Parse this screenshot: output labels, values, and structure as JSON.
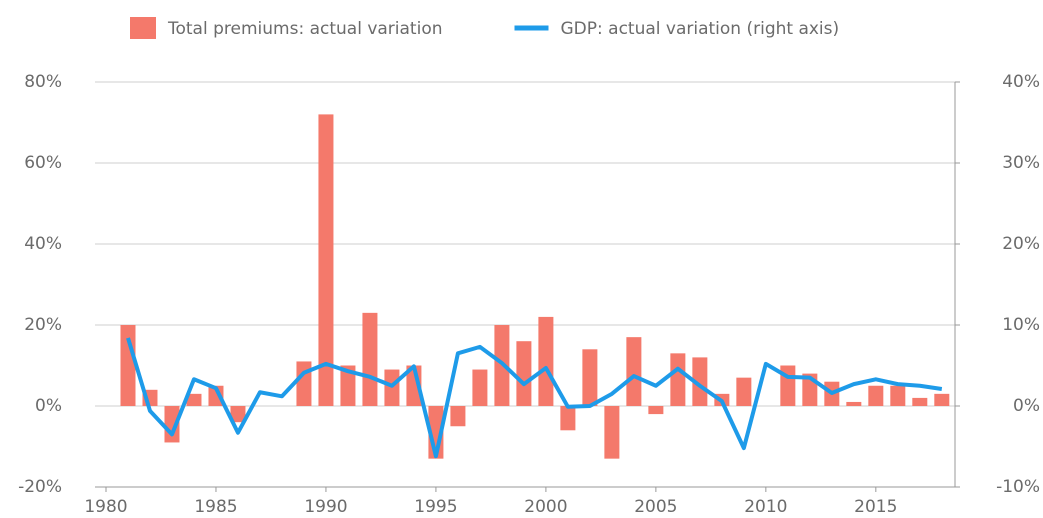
{
  "chart_data": {
    "type": "combo",
    "legend": "top",
    "grid": true,
    "x": [
      1981,
      1982,
      1983,
      1984,
      1985,
      1986,
      1987,
      1988,
      1989,
      1990,
      1991,
      1992,
      1993,
      1994,
      1995,
      1996,
      1997,
      1998,
      1999,
      2000,
      2001,
      2002,
      2003,
      2004,
      2005,
      2006,
      2007,
      2008,
      2009,
      2010,
      2011,
      2012,
      2013,
      2014,
      2015,
      2016,
      2017,
      2018
    ],
    "xlim": [
      1979.5,
      2018.6
    ],
    "xticks": [
      1980,
      1985,
      1990,
      1995,
      2000,
      2005,
      2010,
      2015
    ],
    "ylim": [
      -20,
      80
    ],
    "yticks": [
      {
        "value": -20,
        "label": "-20%"
      },
      {
        "value": 0,
        "label": "0%"
      },
      {
        "value": 20,
        "label": "20%"
      },
      {
        "value": 40,
        "label": "40%"
      },
      {
        "value": 60,
        "label": "60%"
      },
      {
        "value": 80,
        "label": "80%"
      }
    ],
    "y2lim": [
      -10,
      40
    ],
    "y2ticks": [
      {
        "value": -10,
        "label": "-10%"
      },
      {
        "value": 0,
        "label": "0%"
      },
      {
        "value": 10,
        "label": "10%"
      },
      {
        "value": 20,
        "label": "20%"
      },
      {
        "value": 30,
        "label": "30%"
      },
      {
        "value": 40,
        "label": "40%"
      }
    ],
    "series": [
      {
        "name": "Total premiums: actual variation",
        "type": "bar",
        "color": "#f4796b",
        "values": [
          20,
          4,
          -9,
          3,
          5,
          -4,
          0,
          0,
          11,
          72,
          10,
          23,
          9,
          10,
          -13,
          -5,
          9,
          20,
          16,
          22,
          -6,
          14,
          -13,
          17,
          -2,
          13,
          12,
          3,
          7,
          0,
          10,
          8,
          6,
          1,
          5,
          5,
          2,
          3
        ]
      },
      {
        "name": "GDP: actual variation (right axis)",
        "type": "line",
        "axis": "y2",
        "color": "#1e9be9",
        "values": [
          8.4,
          -0.6,
          -3.5,
          3.3,
          2.2,
          -3.3,
          1.7,
          1.2,
          4.1,
          5.2,
          4.3,
          3.6,
          2.5,
          4.9,
          -6.2,
          6.5,
          7.3,
          5.3,
          2.7,
          4.7,
          -0.1,
          0,
          1.5,
          3.7,
          2.5,
          4.6,
          2.5,
          0.6,
          -5.2,
          5.2,
          3.6,
          3.5,
          1.6,
          2.7,
          3.3,
          2.7,
          2.5,
          2.1
        ]
      }
    ]
  }
}
